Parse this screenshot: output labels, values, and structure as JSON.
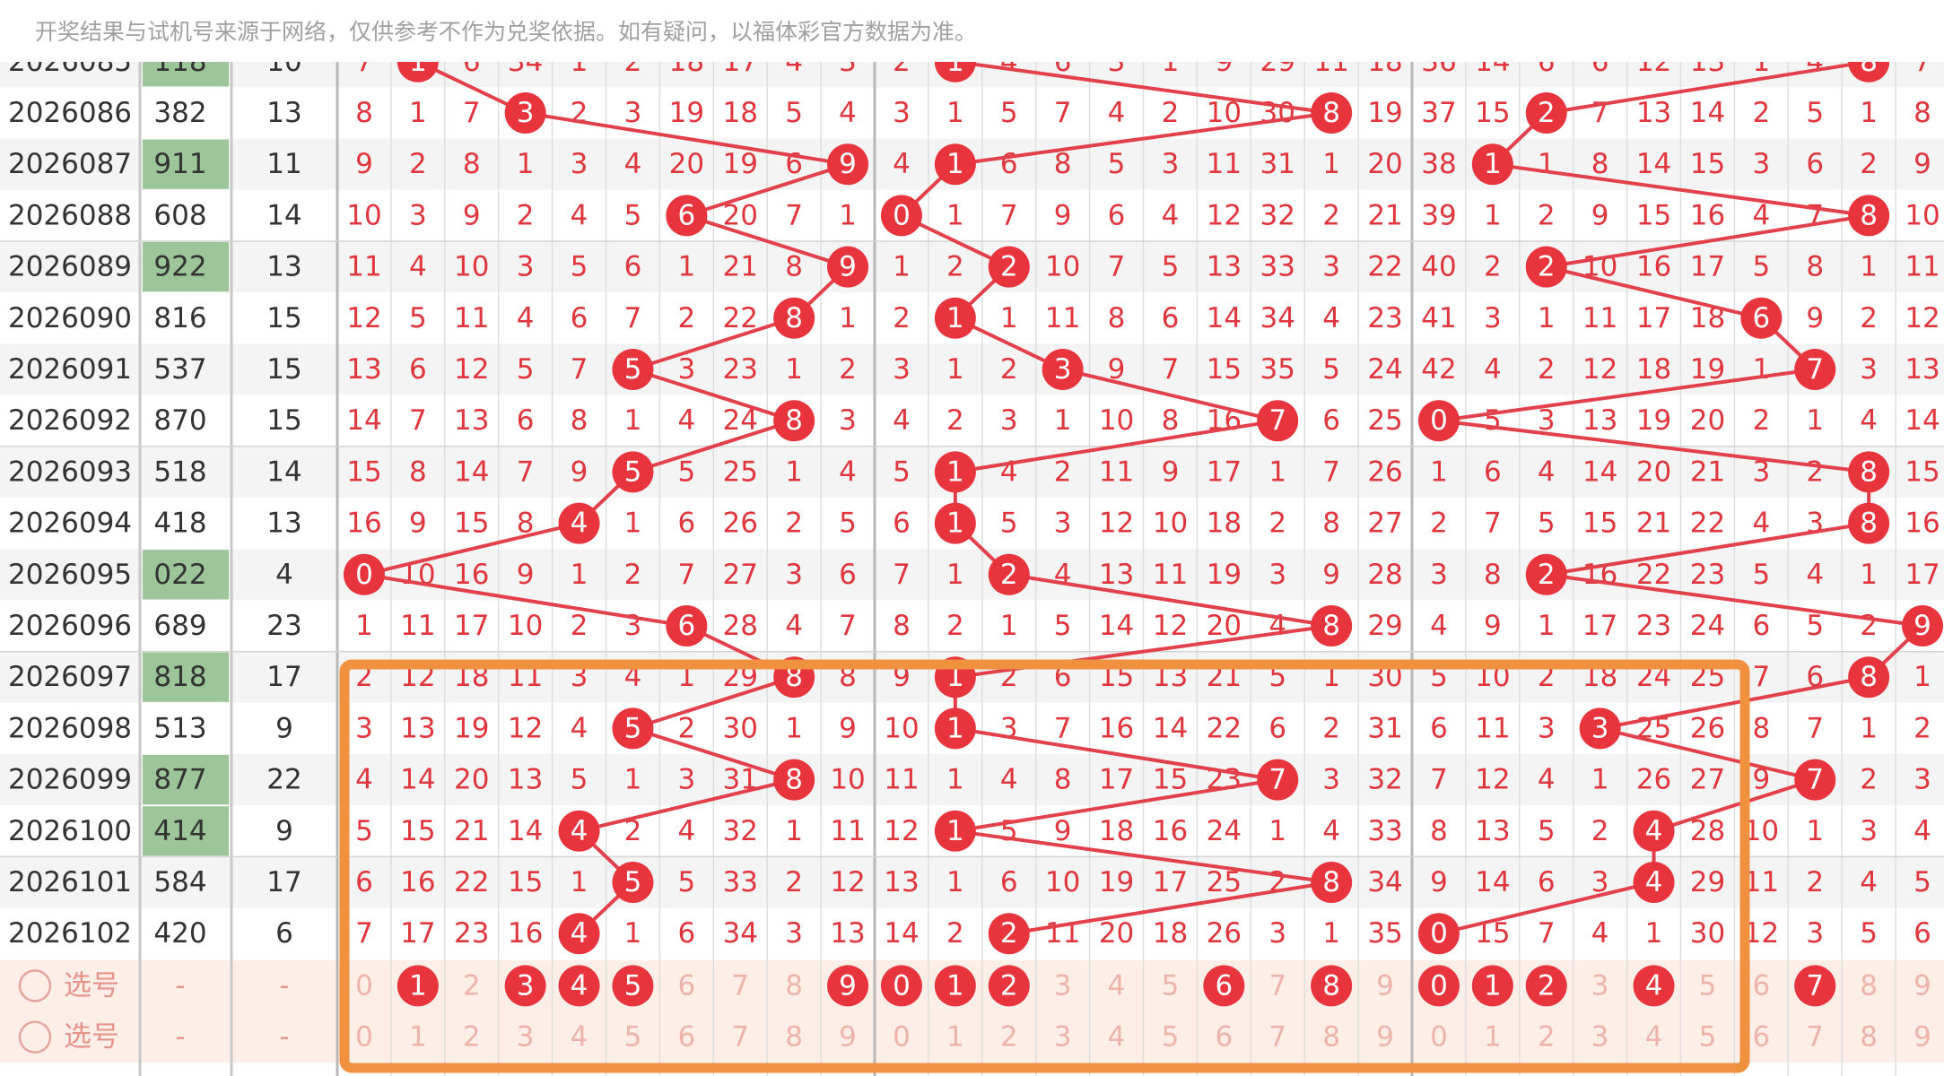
{
  "notice": "开奖结果与试机号来源于网络，仅供参考不作为兑奖依据。如有疑问，以福体彩官方数据为准。",
  "rows": [
    {
      "issue": "2026085",
      "number": "118",
      "sum": 10,
      "cells": [
        7,
        1,
        6,
        34,
        1,
        2,
        18,
        17,
        4,
        3,
        2,
        1,
        4,
        6,
        3,
        1,
        9,
        29,
        11,
        18,
        36,
        14,
        6,
        6,
        12,
        13,
        1,
        4,
        8,
        7
      ]
    },
    {
      "issue": "2026086",
      "number": "382",
      "sum": 13,
      "cells": [
        8,
        1,
        7,
        3,
        2,
        3,
        19,
        18,
        5,
        4,
        3,
        1,
        5,
        7,
        4,
        2,
        10,
        30,
        8,
        19,
        37,
        15,
        2,
        7,
        13,
        14,
        2,
        5,
        1,
        8
      ]
    },
    {
      "issue": "2026087",
      "number": "911",
      "sum": 11,
      "cells": [
        9,
        2,
        8,
        1,
        3,
        4,
        20,
        19,
        6,
        9,
        4,
        1,
        6,
        8,
        5,
        3,
        11,
        31,
        1,
        20,
        38,
        1,
        1,
        8,
        14,
        15,
        3,
        6,
        2,
        9
      ]
    },
    {
      "issue": "2026088",
      "number": "608",
      "sum": 14,
      "cells": [
        10,
        3,
        9,
        2,
        4,
        5,
        6,
        20,
        7,
        1,
        0,
        1,
        7,
        9,
        6,
        4,
        12,
        32,
        2,
        21,
        39,
        1,
        2,
        9,
        15,
        16,
        4,
        7,
        8,
        10
      ]
    },
    {
      "issue": "2026089",
      "number": "922",
      "sum": 13,
      "cells": [
        11,
        4,
        10,
        3,
        5,
        6,
        1,
        21,
        8,
        9,
        1,
        2,
        2,
        10,
        7,
        5,
        13,
        33,
        3,
        22,
        40,
        2,
        2,
        10,
        16,
        17,
        5,
        8,
        1,
        11
      ]
    },
    {
      "issue": "2026090",
      "number": "816",
      "sum": 15,
      "cells": [
        12,
        5,
        11,
        4,
        6,
        7,
        2,
        22,
        8,
        1,
        2,
        1,
        1,
        11,
        8,
        6,
        14,
        34,
        4,
        23,
        41,
        3,
        1,
        11,
        17,
        18,
        6,
        9,
        2,
        12
      ]
    },
    {
      "issue": "2026091",
      "number": "537",
      "sum": 15,
      "cells": [
        13,
        6,
        12,
        5,
        7,
        5,
        3,
        23,
        1,
        2,
        3,
        1,
        2,
        3,
        9,
        7,
        15,
        35,
        5,
        24,
        42,
        4,
        2,
        12,
        18,
        19,
        1,
        7,
        3,
        13
      ]
    },
    {
      "issue": "2026092",
      "number": "870",
      "sum": 15,
      "cells": [
        14,
        7,
        13,
        6,
        8,
        1,
        4,
        24,
        8,
        3,
        4,
        2,
        3,
        1,
        10,
        8,
        16,
        7,
        6,
        25,
        0,
        5,
        3,
        13,
        19,
        20,
        2,
        1,
        4,
        14
      ]
    },
    {
      "issue": "2026093",
      "number": "518",
      "sum": 14,
      "cells": [
        15,
        8,
        14,
        7,
        9,
        5,
        5,
        25,
        1,
        4,
        5,
        1,
        4,
        2,
        11,
        9,
        17,
        1,
        7,
        26,
        1,
        6,
        4,
        14,
        20,
        21,
        3,
        2,
        8,
        15
      ]
    },
    {
      "issue": "2026094",
      "number": "418",
      "sum": 13,
      "cells": [
        16,
        9,
        15,
        8,
        4,
        1,
        6,
        26,
        2,
        5,
        6,
        1,
        5,
        3,
        12,
        10,
        18,
        2,
        8,
        27,
        2,
        7,
        5,
        15,
        21,
        22,
        4,
        3,
        8,
        16
      ]
    },
    {
      "issue": "2026095",
      "number": "022",
      "sum": 4,
      "cells": [
        0,
        10,
        16,
        9,
        1,
        2,
        7,
        27,
        3,
        6,
        7,
        1,
        2,
        4,
        13,
        11,
        19,
        3,
        9,
        28,
        3,
        8,
        2,
        16,
        22,
        23,
        5,
        4,
        1,
        17
      ]
    },
    {
      "issue": "2026096",
      "number": "689",
      "sum": 23,
      "cells": [
        1,
        11,
        17,
        10,
        2,
        3,
        6,
        28,
        4,
        7,
        8,
        2,
        1,
        5,
        14,
        12,
        20,
        4,
        8,
        29,
        4,
        9,
        1,
        17,
        23,
        24,
        6,
        5,
        2,
        9
      ]
    },
    {
      "issue": "2026097",
      "number": "818",
      "sum": 17,
      "cells": [
        2,
        12,
        18,
        11,
        3,
        4,
        1,
        29,
        8,
        8,
        9,
        1,
        2,
        6,
        15,
        13,
        21,
        5,
        1,
        30,
        5,
        10,
        2,
        18,
        24,
        25,
        7,
        6,
        8,
        1
      ]
    },
    {
      "issue": "2026098",
      "number": "513",
      "sum": 9,
      "cells": [
        3,
        13,
        19,
        12,
        4,
        5,
        2,
        30,
        1,
        9,
        10,
        1,
        3,
        7,
        16,
        14,
        22,
        6,
        2,
        31,
        6,
        11,
        3,
        3,
        25,
        26,
        8,
        7,
        1,
        2
      ]
    },
    {
      "issue": "2026099",
      "number": "877",
      "sum": 22,
      "cells": [
        4,
        14,
        20,
        13,
        5,
        1,
        3,
        31,
        8,
        10,
        11,
        1,
        4,
        8,
        17,
        15,
        23,
        7,
        3,
        32,
        7,
        12,
        4,
        1,
        26,
        27,
        9,
        7,
        2,
        3
      ]
    },
    {
      "issue": "2026100",
      "number": "414",
      "sum": 9,
      "cells": [
        5,
        15,
        21,
        14,
        4,
        2,
        4,
        32,
        1,
        11,
        12,
        1,
        5,
        9,
        18,
        16,
        24,
        1,
        4,
        33,
        8,
        13,
        5,
        2,
        4,
        28,
        10,
        1,
        3,
        4
      ]
    },
    {
      "issue": "2026101",
      "number": "584",
      "sum": 17,
      "cells": [
        6,
        16,
        22,
        15,
        1,
        5,
        5,
        33,
        2,
        12,
        13,
        1,
        6,
        10,
        19,
        17,
        25,
        2,
        8,
        34,
        9,
        14,
        6,
        3,
        4,
        29,
        11,
        2,
        4,
        5
      ]
    },
    {
      "issue": "2026102",
      "number": "420",
      "sum": 6,
      "cells": [
        7,
        17,
        23,
        16,
        4,
        1,
        6,
        34,
        3,
        13,
        14,
        2,
        2,
        11,
        20,
        18,
        26,
        3,
        1,
        35,
        0,
        15,
        7,
        4,
        1,
        30,
        12,
        3,
        5,
        6
      ]
    }
  ],
  "selection": [
    {
      "label": "选号",
      "number": "-",
      "sum": "-",
      "cells": [
        0,
        1,
        2,
        3,
        4,
        5,
        6,
        7,
        8,
        9,
        0,
        1,
        2,
        3,
        4,
        5,
        6,
        7,
        8,
        9,
        0,
        1,
        2,
        3,
        4,
        5,
        6,
        7,
        8,
        9
      ],
      "selected": [
        false,
        true,
        false,
        true,
        true,
        true,
        false,
        false,
        false,
        true,
        true,
        true,
        true,
        false,
        false,
        false,
        true,
        false,
        true,
        false,
        true,
        true,
        true,
        false,
        true,
        false,
        false,
        true,
        false,
        false
      ]
    },
    {
      "label": "选号",
      "number": "-",
      "sum": "-",
      "cells": [
        0,
        1,
        2,
        3,
        4,
        5,
        6,
        7,
        8,
        9,
        0,
        1,
        2,
        3,
        4,
        5,
        6,
        7,
        8,
        9,
        0,
        1,
        2,
        3,
        4,
        5,
        6,
        7,
        8,
        9
      ],
      "selected": [
        false,
        false,
        false,
        false,
        false,
        false,
        false,
        false,
        false,
        false,
        false,
        false,
        false,
        false,
        false,
        false,
        false,
        false,
        false,
        false,
        false,
        false,
        false,
        false,
        false,
        false,
        false,
        false,
        false,
        false
      ]
    }
  ]
}
